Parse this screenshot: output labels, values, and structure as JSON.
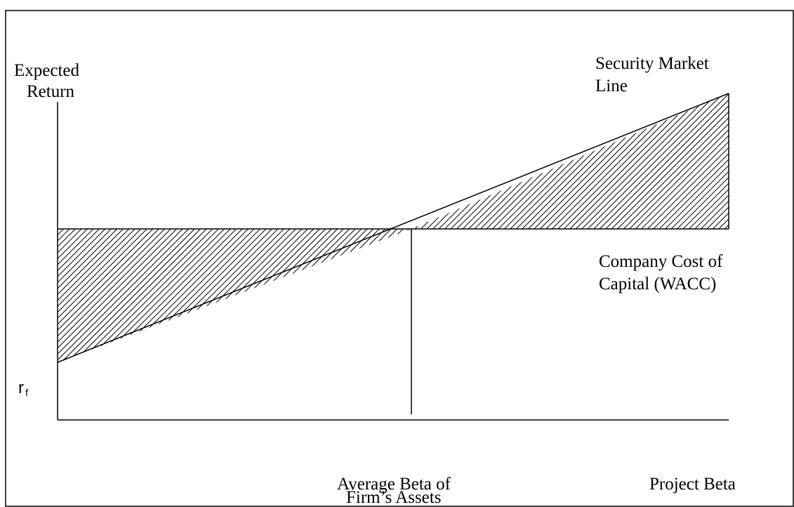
{
  "y_axis_label": [
    "Expected",
    "Return"
  ],
  "sml_label": [
    "Security Market",
    "Line"
  ],
  "wacc_label": [
    "Company Cost of",
    "Capital (WACC)"
  ],
  "rf_label": {
    "main": "r",
    "sub": "f"
  },
  "x_labels": {
    "average_beta": [
      "Average Beta of",
      "Firm’s Assets"
    ],
    "project_beta": "Project Beta"
  }
}
